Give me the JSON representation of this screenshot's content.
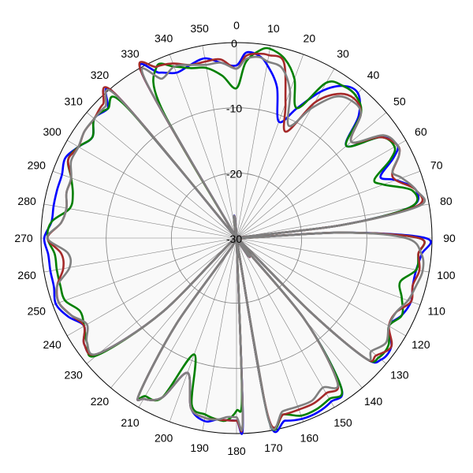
{
  "chart_data": {
    "type": "polar-line",
    "angle_ticks": [
      "0",
      "10",
      "20",
      "30",
      "40",
      "50",
      "60",
      "70",
      "80",
      "90",
      "100",
      "110",
      "120",
      "130",
      "140",
      "150",
      "160",
      "170",
      "180",
      "190",
      "200",
      "210",
      "220",
      "230",
      "240",
      "250",
      "260",
      "270",
      "280",
      "290",
      "300",
      "310",
      "320",
      "330",
      "340",
      "350"
    ],
    "radial_tick_labels": [
      "0",
      "-10",
      "-20",
      "-30"
    ],
    "radial_range": [
      -30,
      0
    ],
    "grid": true,
    "colors": {
      "background": "#f9f9f9",
      "grid": "#808080",
      "outer_ring": "#000000"
    },
    "series": [
      {
        "color": "#0000ff",
        "angles": [
          0,
          3,
          7,
          10,
          15,
          20,
          25,
          30,
          35,
          40,
          45,
          50,
          55,
          60,
          63,
          67,
          70,
          75,
          80,
          83,
          85,
          87,
          90,
          95,
          100,
          105,
          110,
          115,
          120,
          125,
          130,
          133,
          135,
          138,
          140,
          145,
          150,
          155,
          160,
          165,
          170,
          172,
          175,
          178,
          180,
          183,
          186,
          190,
          195,
          200,
          205,
          210,
          212,
          215,
          220,
          225,
          230,
          235,
          240,
          245,
          250,
          255,
          260,
          265,
          270,
          275,
          280,
          285,
          290,
          295,
          300,
          305,
          310,
          315,
          320,
          323,
          325,
          330,
          335,
          340,
          345,
          350,
          355,
          360
        ],
        "r": [
          -3.5,
          -1.5,
          -1.8,
          -3,
          -6,
          -11,
          -8,
          -4,
          -1.5,
          -1,
          -3.5,
          -8,
          -3,
          -1.5,
          -3,
          -6,
          -4,
          -1.5,
          -3,
          -14,
          -30,
          -14,
          -1,
          -1.5,
          -2,
          -2,
          -1.5,
          -2,
          -3,
          -1,
          -1,
          -3,
          -14,
          -30,
          -14,
          -2,
          -1,
          -0.5,
          -0.5,
          -1,
          -2,
          -30,
          -30,
          -2,
          -2,
          -2,
          -2,
          -1.5,
          -3,
          -8,
          -3,
          -1.5,
          -2,
          -14,
          -30,
          -14,
          -2.5,
          -1.5,
          -3,
          -1.5,
          -0.5,
          -1,
          -1,
          -1,
          -0.5,
          -1.5,
          -1.5,
          -1.5,
          -1.5,
          -1,
          -2,
          -3,
          -1.5,
          -2,
          -1.5,
          -30,
          -30,
          -1.5,
          -2,
          -3,
          -2.5,
          -2,
          -3,
          -3.5
        ]
      },
      {
        "color": "#008000",
        "angles": [
          0,
          3,
          7,
          10,
          15,
          20,
          25,
          30,
          35,
          40,
          45,
          50,
          55,
          60,
          63,
          67,
          70,
          75,
          80,
          83,
          85,
          87,
          90,
          95,
          100,
          105,
          110,
          115,
          120,
          125,
          130,
          133,
          135,
          138,
          140,
          145,
          150,
          155,
          160,
          165,
          170,
          172,
          175,
          178,
          180,
          183,
          186,
          190,
          195,
          200,
          205,
          210,
          212,
          215,
          220,
          225,
          230,
          235,
          240,
          245,
          250,
          255,
          260,
          265,
          270,
          275,
          280,
          285,
          290,
          295,
          300,
          305,
          310,
          315,
          320,
          323,
          325,
          330,
          335,
          340,
          345,
          350,
          355,
          360
        ],
        "r": [
          -7,
          -3,
          -1,
          -0.5,
          -1.5,
          -4,
          -8,
          -2.5,
          -1.5,
          -1.5,
          -3,
          -8,
          -3,
          -2,
          -3.5,
          -7,
          -6,
          -2,
          -3,
          -14,
          -30,
          -14,
          -2,
          -2,
          -2,
          -4,
          -3,
          -2,
          -3,
          -1.5,
          -1.5,
          -3,
          -14,
          -30,
          -14,
          -2,
          -1.5,
          -1,
          -1,
          -2,
          -2,
          -30,
          -30,
          -6,
          -3.5,
          -2,
          -2,
          -2.5,
          -3.5,
          -11,
          -3,
          -2,
          -2,
          -14,
          -30,
          -14,
          -2,
          -2,
          -3,
          -3.5,
          -2,
          -2,
          -2,
          -2,
          -1,
          -1.5,
          -4,
          -4,
          -3,
          -1.5,
          -2,
          -3,
          -1.5,
          -2,
          -3.5,
          -30,
          -30,
          -7,
          -1,
          -2,
          -3,
          -3.5,
          -5,
          -7
        ]
      },
      {
        "color": "#a52a2a",
        "angles": [
          0,
          3,
          7,
          10,
          15,
          20,
          25,
          30,
          35,
          40,
          45,
          50,
          55,
          60,
          63,
          67,
          70,
          75,
          80,
          83,
          85,
          87,
          90,
          95,
          100,
          105,
          110,
          115,
          120,
          125,
          130,
          133,
          135,
          138,
          140,
          145,
          150,
          155,
          160,
          165,
          170,
          172,
          175,
          178,
          180,
          183,
          186,
          190,
          195,
          200,
          205,
          210,
          212,
          215,
          220,
          225,
          230,
          235,
          240,
          245,
          250,
          255,
          260,
          265,
          270,
          275,
          280,
          285,
          290,
          295,
          300,
          305,
          310,
          315,
          320,
          323,
          325,
          330,
          335,
          340,
          345,
          350,
          355,
          360
        ],
        "r": [
          -4,
          -2,
          -1.5,
          -1.5,
          -2,
          -8,
          -12,
          -6,
          -3,
          -2,
          -3,
          -7,
          -3,
          -1.5,
          -2,
          -4,
          -4,
          -1.5,
          -2,
          -14,
          -30,
          -14,
          -2,
          -2,
          -1.5,
          -2,
          -1.5,
          -3,
          -3,
          -1,
          -2,
          -3,
          -14,
          -30,
          -14,
          -3,
          -2.5,
          -2,
          -2,
          -2,
          -2.5,
          -30,
          -30,
          -2.5,
          -2,
          -2,
          -2,
          -2,
          -3,
          -8,
          -3,
          -1.5,
          -2,
          -14,
          -30,
          -14,
          -2.5,
          -1.5,
          -3,
          -2,
          -1,
          -1.5,
          -3,
          -3,
          -1,
          -3,
          -3.5,
          -3,
          -3,
          -1.5,
          -2,
          -1.5,
          -1.5,
          -1,
          -1.5,
          -30,
          -30,
          -1.5,
          -1,
          -1.5,
          -2.5,
          -2.5,
          -2.5,
          -4
        ]
      },
      {
        "color": "#808080",
        "angles": [
          0,
          3,
          7,
          10,
          15,
          20,
          25,
          30,
          35,
          40,
          45,
          50,
          55,
          60,
          63,
          67,
          70,
          75,
          80,
          83,
          85,
          87,
          90,
          95,
          100,
          105,
          110,
          115,
          120,
          125,
          130,
          133,
          135,
          138,
          140,
          145,
          150,
          155,
          160,
          165,
          170,
          172,
          175,
          178,
          180,
          183,
          186,
          190,
          195,
          200,
          205,
          210,
          212,
          215,
          220,
          225,
          230,
          235,
          240,
          245,
          250,
          255,
          260,
          265,
          270,
          275,
          280,
          285,
          290,
          295,
          300,
          305,
          310,
          315,
          320,
          323,
          325,
          330,
          335,
          340,
          345,
          350,
          355,
          360
        ],
        "r": [
          -4,
          -2.5,
          -2,
          -2.5,
          -3,
          -6,
          -11,
          -7,
          -3.5,
          -2.5,
          -3,
          -7,
          -2.5,
          -1.5,
          -2,
          -4,
          -3,
          -1.5,
          -1.5,
          -14,
          -30,
          -14,
          -4,
          -1.5,
          -1,
          -1.5,
          -2,
          -3,
          -3,
          -2,
          -3,
          -3,
          -14,
          -30,
          -14,
          -3,
          -3.5,
          -2.5,
          -2.5,
          -2.5,
          -2,
          -30,
          -30,
          -2.5,
          -2.5,
          -2.5,
          -2,
          -2,
          -3,
          -8,
          -3,
          -1.5,
          -2,
          -14,
          -30,
          -14,
          -2.5,
          -2,
          -3.5,
          -2,
          -1,
          -1.5,
          -4,
          -4,
          -1,
          -3,
          -3.5,
          -3,
          -3,
          -2,
          -2,
          -1.5,
          -1.5,
          -1.5,
          -2,
          -30,
          -30,
          -2,
          -3,
          -2,
          -2.5,
          -3,
          -3,
          -4
        ]
      }
    ]
  }
}
